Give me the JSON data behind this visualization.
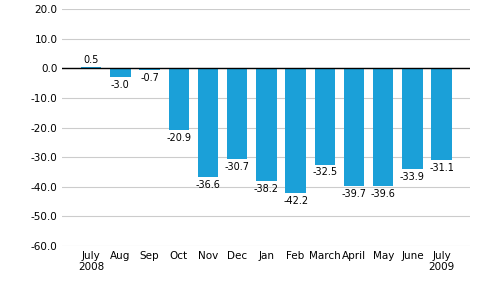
{
  "categories": [
    "July\n2008",
    "Aug",
    "Sep",
    "Oct",
    "Nov",
    "Dec",
    "Jan",
    "Feb",
    "March",
    "April",
    "May",
    "June",
    "July\n2009"
  ],
  "values": [
    0.5,
    -3.0,
    -0.7,
    -20.9,
    -36.6,
    -30.7,
    -38.2,
    -42.2,
    -32.5,
    -39.7,
    -39.6,
    -33.9,
    -31.1
  ],
  "bar_color": "#1ba0d8",
  "ylim": [
    -60,
    20
  ],
  "yticks": [
    -60,
    -50,
    -40,
    -30,
    -20,
    -10,
    0,
    10,
    20
  ],
  "background_color": "#ffffff",
  "grid_color": "#cccccc",
  "label_fontsize": 7,
  "tick_fontsize": 7.5
}
